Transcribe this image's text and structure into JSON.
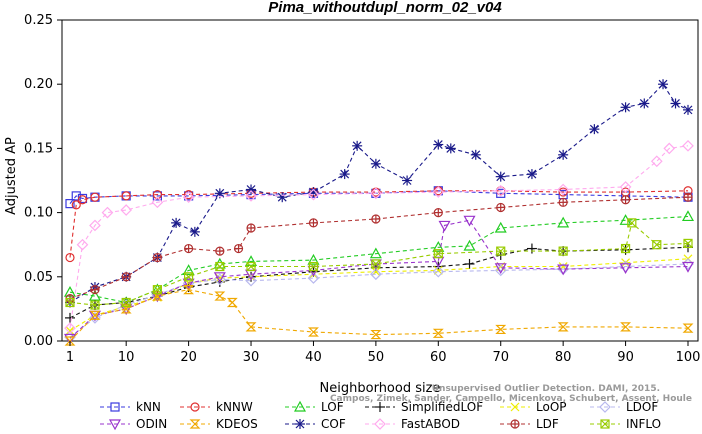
{
  "chart_data": {
    "type": "line",
    "title": "Pima_withoutdupl_norm_02_v04",
    "xlabel": "Neighborhood size",
    "ylabel": "Adjusted AP",
    "xlim": [
      1,
      100
    ],
    "ylim": [
      0,
      0.25
    ],
    "xticks": [
      1,
      10,
      20,
      30,
      40,
      50,
      60,
      70,
      80,
      90,
      100
    ],
    "yticks": [
      "0.00",
      "0.05",
      "0.10",
      "0.15",
      "0.20",
      "0.25"
    ],
    "grid": false,
    "legend_position": "bottom",
    "watermark": [
      "Unsupervised Outlier Detection. DAMI, 2015.",
      "Campos, Zimek, Sander, Campello, Micenkova, Schubert, Assent, Houle"
    ],
    "series": [
      {
        "name": "kNN",
        "color": "#3a3adf",
        "marker": "square",
        "x": [
          1,
          2,
          3,
          5,
          10,
          15,
          20,
          30,
          40,
          50,
          60,
          70,
          80,
          90,
          100
        ],
        "y": [
          0.107,
          0.113,
          0.111,
          0.112,
          0.113,
          0.113,
          0.113,
          0.114,
          0.115,
          0.115,
          0.117,
          0.115,
          0.114,
          0.113,
          0.112
        ]
      },
      {
        "name": "kNNW",
        "color": "#e03030",
        "marker": "circle",
        "x": [
          1,
          2,
          3,
          5,
          10,
          15,
          20,
          30,
          40,
          50,
          60,
          70,
          80,
          90,
          100
        ],
        "y": [
          0.065,
          0.106,
          0.11,
          0.112,
          0.113,
          0.114,
          0.114,
          0.115,
          0.116,
          0.116,
          0.117,
          0.117,
          0.116,
          0.116,
          0.117
        ]
      },
      {
        "name": "LOF",
        "color": "#22cc22",
        "marker": "triangle",
        "x": [
          1,
          5,
          10,
          15,
          20,
          25,
          30,
          40,
          50,
          60,
          65,
          70,
          80,
          90,
          100
        ],
        "y": [
          0.038,
          0.035,
          0.03,
          0.04,
          0.055,
          0.06,
          0.062,
          0.063,
          0.068,
          0.073,
          0.074,
          0.088,
          0.092,
          0.094,
          0.097
        ]
      },
      {
        "name": "SimplifiedLOF",
        "color": "#111111",
        "marker": "plus",
        "x": [
          1,
          5,
          10,
          15,
          20,
          25,
          30,
          40,
          50,
          60,
          65,
          70,
          75,
          80,
          90,
          100
        ],
        "y": [
          0.018,
          0.028,
          0.03,
          0.035,
          0.042,
          0.046,
          0.05,
          0.054,
          0.057,
          0.058,
          0.06,
          0.067,
          0.072,
          0.07,
          0.071,
          0.073
        ]
      },
      {
        "name": "LoOP",
        "color": "#eeee00",
        "marker": "x",
        "x": [
          1,
          5,
          10,
          15,
          20,
          25,
          30,
          40,
          50,
          60,
          70,
          80,
          90,
          100
        ],
        "y": [
          0.008,
          0.02,
          0.027,
          0.034,
          0.045,
          0.049,
          0.05,
          0.052,
          0.054,
          0.055,
          0.058,
          0.058,
          0.061,
          0.064
        ]
      },
      {
        "name": "LDOF",
        "color": "#b8b8ee",
        "marker": "diamond",
        "x": [
          1,
          5,
          10,
          15,
          20,
          25,
          30,
          40,
          50,
          60,
          70,
          80,
          90,
          100
        ],
        "y": [
          0.003,
          0.018,
          0.028,
          0.036,
          0.045,
          0.048,
          0.047,
          0.049,
          0.052,
          0.054,
          0.055,
          0.056,
          0.058,
          0.06
        ]
      },
      {
        "name": "ODIN",
        "color": "#9933cc",
        "marker": "triangle-down",
        "x": [
          1,
          5,
          10,
          15,
          20,
          25,
          30,
          40,
          50,
          60,
          61,
          65,
          70,
          80,
          90,
          100
        ],
        "y": [
          0.002,
          0.02,
          0.025,
          0.035,
          0.045,
          0.05,
          0.052,
          0.055,
          0.06,
          0.062,
          0.09,
          0.094,
          0.057,
          0.056,
          0.057,
          0.058
        ]
      },
      {
        "name": "KDEOS",
        "color": "#f0a800",
        "marker": "hourglass",
        "x": [
          1,
          5,
          10,
          15,
          20,
          25,
          27,
          30,
          40,
          50,
          60,
          70,
          80,
          90,
          100
        ],
        "y": [
          0.0,
          0.02,
          0.025,
          0.035,
          0.04,
          0.035,
          0.03,
          0.011,
          0.007,
          0.005,
          0.006,
          0.009,
          0.011,
          0.011,
          0.01
        ]
      },
      {
        "name": "COF",
        "color": "#1a1a8a",
        "marker": "asterisk",
        "x": [
          1,
          5,
          10,
          15,
          18,
          21,
          25,
          30,
          35,
          40,
          45,
          47,
          50,
          55,
          60,
          62,
          66,
          70,
          75,
          80,
          85,
          90,
          93,
          96,
          98,
          100
        ],
        "y": [
          0.03,
          0.042,
          0.05,
          0.065,
          0.092,
          0.085,
          0.115,
          0.118,
          0.112,
          0.116,
          0.13,
          0.152,
          0.138,
          0.125,
          0.153,
          0.15,
          0.145,
          0.128,
          0.13,
          0.145,
          0.165,
          0.182,
          0.185,
          0.2,
          0.185,
          0.18
        ]
      },
      {
        "name": "FastABOD",
        "color": "#ffaaee",
        "marker": "diamond",
        "x": [
          1,
          3,
          5,
          7,
          10,
          15,
          20,
          30,
          40,
          50,
          60,
          70,
          80,
          90,
          95,
          97,
          100
        ],
        "y": [
          0.01,
          0.075,
          0.09,
          0.1,
          0.102,
          0.108,
          0.112,
          0.113,
          0.114,
          0.115,
          0.116,
          0.117,
          0.118,
          0.12,
          0.14,
          0.15,
          0.152
        ]
      },
      {
        "name": "LDF",
        "color": "#b03030",
        "marker": "circle-plus",
        "x": [
          1,
          5,
          10,
          15,
          20,
          25,
          28,
          30,
          40,
          50,
          60,
          70,
          80,
          90,
          100
        ],
        "y": [
          0.033,
          0.04,
          0.05,
          0.065,
          0.072,
          0.07,
          0.072,
          0.088,
          0.092,
          0.095,
          0.1,
          0.104,
          0.108,
          0.11,
          0.112
        ]
      },
      {
        "name": "INFLO",
        "color": "#99cc00",
        "marker": "square-x",
        "x": [
          1,
          5,
          10,
          15,
          20,
          25,
          30,
          40,
          50,
          60,
          70,
          80,
          90,
          91,
          95,
          100
        ],
        "y": [
          0.03,
          0.028,
          0.03,
          0.04,
          0.05,
          0.058,
          0.058,
          0.058,
          0.06,
          0.068,
          0.07,
          0.07,
          0.072,
          0.092,
          0.075,
          0.076
        ]
      }
    ]
  }
}
